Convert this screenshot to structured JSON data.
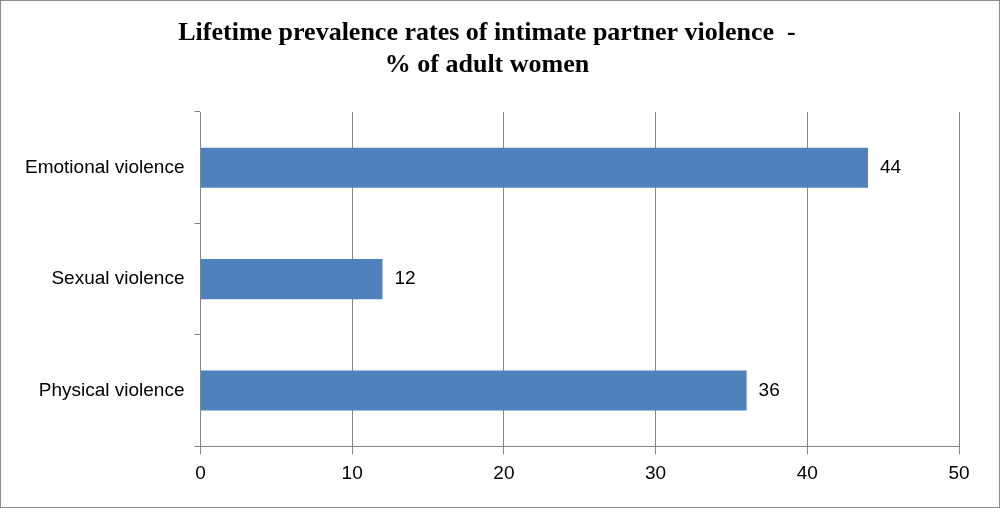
{
  "chart_data": {
    "type": "bar",
    "orientation": "horizontal",
    "title": [
      "Lifetime prevalence rates of intimate partner violence  -",
      "% of adult women"
    ],
    "categories": [
      "Emotional violence",
      "Sexual violence",
      "Physical violence"
    ],
    "values": [
      44,
      12,
      36
    ],
    "color": "#4f81bd",
    "xlim": [
      0,
      50
    ],
    "xticks": [
      0,
      10,
      20,
      30,
      40,
      50
    ],
    "grid": true,
    "data_labels": true
  }
}
